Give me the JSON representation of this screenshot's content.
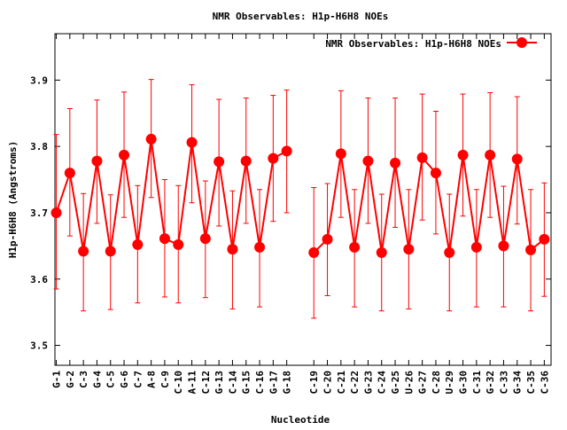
{
  "chart_data": {
    "type": "line",
    "title": "NMR Observables: H1p-H6H8 NOEs",
    "xlabel": "Nucleotide",
    "ylabel": "H1p-H6H8 (Angstroms)",
    "ylim": [
      3.47,
      3.97
    ],
    "xlim": [
      0.9,
      37.5
    ],
    "yticks": [
      "3.5",
      "3.6",
      "3.7",
      "3.8",
      "3.9"
    ],
    "ytick_values": [
      3.5,
      3.6,
      3.7,
      3.8,
      3.9
    ],
    "legend": {
      "label": "NMR Observables: H1p-H6H8 NOEs",
      "placement": "top-right"
    },
    "series_color": "#ff0000",
    "points": [
      {
        "label": "G-1",
        "x": 1,
        "y": 3.7,
        "lo": 3.585,
        "hi": 3.818
      },
      {
        "label": "G-2",
        "x": 2,
        "y": 3.76,
        "lo": 3.665,
        "hi": 3.857
      },
      {
        "label": "C-3",
        "x": 3,
        "y": 3.642,
        "lo": 3.552,
        "hi": 3.729
      },
      {
        "label": "G-4",
        "x": 4,
        "y": 3.778,
        "lo": 3.684,
        "hi": 3.87
      },
      {
        "label": "C-5",
        "x": 5,
        "y": 3.642,
        "lo": 3.554,
        "hi": 3.727
      },
      {
        "label": "G-6",
        "x": 6,
        "y": 3.787,
        "lo": 3.693,
        "hi": 3.882
      },
      {
        "label": "C-7",
        "x": 7,
        "y": 3.652,
        "lo": 3.564,
        "hi": 3.741
      },
      {
        "label": "A-8",
        "x": 8,
        "y": 3.811,
        "lo": 3.723,
        "hi": 3.901
      },
      {
        "label": "C-9",
        "x": 9,
        "y": 3.661,
        "lo": 3.573,
        "hi": 3.75
      },
      {
        "label": "C-10",
        "x": 10,
        "y": 3.652,
        "lo": 3.564,
        "hi": 3.741
      },
      {
        "label": "A-11",
        "x": 11,
        "y": 3.806,
        "lo": 3.715,
        "hi": 3.893
      },
      {
        "label": "C-12",
        "x": 12,
        "y": 3.661,
        "lo": 3.572,
        "hi": 3.748
      },
      {
        "label": "G-13",
        "x": 13,
        "y": 3.777,
        "lo": 3.68,
        "hi": 3.871
      },
      {
        "label": "C-14",
        "x": 14,
        "y": 3.645,
        "lo": 3.555,
        "hi": 3.733
      },
      {
        "label": "G-15",
        "x": 15,
        "y": 3.778,
        "lo": 3.684,
        "hi": 3.873
      },
      {
        "label": "C-16",
        "x": 16,
        "y": 3.648,
        "lo": 3.558,
        "hi": 3.735
      },
      {
        "label": "G-17",
        "x": 17,
        "y": 3.782,
        "lo": 3.687,
        "hi": 3.877
      },
      {
        "label": "G-18",
        "x": 18,
        "y": 3.793,
        "lo": 3.7,
        "hi": 3.885
      },
      {
        "label": "C-19",
        "x": 20,
        "y": 3.64,
        "lo": 3.541,
        "hi": 3.738
      },
      {
        "label": "C-20",
        "x": 21,
        "y": 3.66,
        "lo": 3.575,
        "hi": 3.744
      },
      {
        "label": "C-21",
        "x": 22,
        "y": 3.789,
        "lo": 3.693,
        "hi": 3.884
      },
      {
        "label": "C-22",
        "x": 23,
        "y": 3.648,
        "lo": 3.558,
        "hi": 3.735
      },
      {
        "label": "G-23",
        "x": 24,
        "y": 3.778,
        "lo": 3.684,
        "hi": 3.873
      },
      {
        "label": "C-24",
        "x": 25,
        "y": 3.64,
        "lo": 3.552,
        "hi": 3.728
      },
      {
        "label": "G-25",
        "x": 26,
        "y": 3.775,
        "lo": 3.678,
        "hi": 3.873
      },
      {
        "label": "U-26",
        "x": 27,
        "y": 3.645,
        "lo": 3.555,
        "hi": 3.735
      },
      {
        "label": "G-27",
        "x": 28,
        "y": 3.783,
        "lo": 3.689,
        "hi": 3.879
      },
      {
        "label": "C-28",
        "x": 29,
        "y": 3.76,
        "lo": 3.668,
        "hi": 3.853
      },
      {
        "label": "U-29",
        "x": 30,
        "y": 3.64,
        "lo": 3.552,
        "hi": 3.728
      },
      {
        "label": "G-30",
        "x": 31,
        "y": 3.787,
        "lo": 3.695,
        "hi": 3.879
      },
      {
        "label": "C-31",
        "x": 32,
        "y": 3.648,
        "lo": 3.558,
        "hi": 3.735
      },
      {
        "label": "G-32",
        "x": 33,
        "y": 3.787,
        "lo": 3.693,
        "hi": 3.881
      },
      {
        "label": "C-33",
        "x": 34,
        "y": 3.65,
        "lo": 3.558,
        "hi": 3.74
      },
      {
        "label": "G-34",
        "x": 35,
        "y": 3.781,
        "lo": 3.683,
        "hi": 3.875
      },
      {
        "label": "C-35",
        "x": 36,
        "y": 3.644,
        "lo": 3.552,
        "hi": 3.735
      },
      {
        "label": "C-36",
        "x": 37,
        "y": 3.66,
        "lo": 3.574,
        "hi": 3.745
      }
    ]
  }
}
